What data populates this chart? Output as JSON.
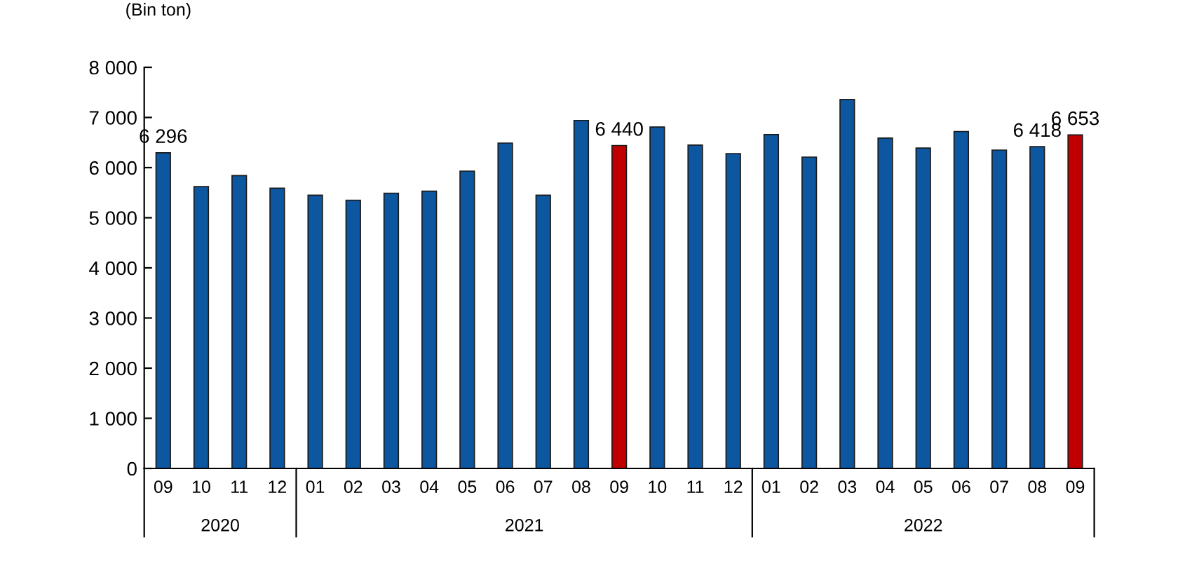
{
  "chart_data": {
    "type": "bar",
    "ylabel": "(Bin ton)",
    "categories": [
      "09",
      "10",
      "11",
      "12",
      "01",
      "02",
      "03",
      "04",
      "05",
      "06",
      "07",
      "08",
      "09",
      "10",
      "11",
      "12",
      "01",
      "02",
      "03",
      "04",
      "05",
      "06",
      "07",
      "08",
      "09"
    ],
    "values": [
      6296,
      5620,
      5840,
      5590,
      5450,
      5350,
      5490,
      5530,
      5930,
      6490,
      5450,
      6940,
      6440,
      6810,
      6450,
      6280,
      6660,
      6210,
      7360,
      6590,
      6390,
      6720,
      6350,
      6418,
      6653
    ],
    "colors": [
      "#0d56a0",
      "#0d56a0",
      "#0d56a0",
      "#0d56a0",
      "#0d56a0",
      "#0d56a0",
      "#0d56a0",
      "#0d56a0",
      "#0d56a0",
      "#0d56a0",
      "#0d56a0",
      "#0d56a0",
      "#c00000",
      "#0d56a0",
      "#0d56a0",
      "#0d56a0",
      "#0d56a0",
      "#0d56a0",
      "#0d56a0",
      "#0d56a0",
      "#0d56a0",
      "#0d56a0",
      "#0d56a0",
      "#0d56a0",
      "#c00000"
    ],
    "value_labels": [
      "6 296",
      null,
      null,
      null,
      null,
      null,
      null,
      null,
      null,
      null,
      null,
      null,
      "6 440",
      null,
      null,
      null,
      null,
      null,
      null,
      null,
      null,
      null,
      null,
      "6 418",
      "6 653"
    ],
    "annotations": [
      "2020",
      "2021",
      "2022"
    ],
    "ylim": [
      0,
      8000
    ],
    "yticks": [
      0,
      {
        "value": 1000,
        "label": "1 000"
      },
      {
        "value": 2000,
        "label": "2 000"
      },
      {
        "value": 3000,
        "label": "3 000"
      },
      {
        "value": 4000,
        "label": "4 000"
      },
      {
        "value": 5000,
        "label": "5 000"
      },
      {
        "value": 6000,
        "label": "6 000"
      },
      {
        "value": 7000,
        "label": "7 000"
      },
      {
        "value": 8000,
        "label": "8 000"
      }
    ],
    "grid": false,
    "legend": false
  }
}
